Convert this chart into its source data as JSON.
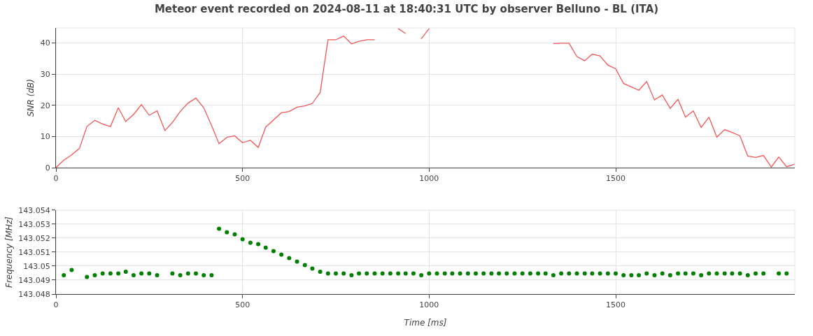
{
  "chart_data": [
    {
      "type": "line",
      "title": "Meteor event recorded on 2024-08-11 at 18:40:31 UTC by observer Belluno - BL (ITA)",
      "ylabel": "SNR (dB)",
      "marker": "none",
      "line_style": "solid",
      "grid": true,
      "x": [
        0,
        21,
        42,
        63,
        83,
        104,
        125,
        146,
        167,
        187,
        208,
        229,
        250,
        271,
        292,
        312,
        333,
        354,
        375,
        396,
        417,
        437,
        458,
        479,
        500,
        521,
        542,
        562,
        583,
        604,
        625,
        646,
        667,
        687,
        708,
        729,
        750,
        771,
        792,
        812,
        833,
        854,
        875,
        896,
        917,
        937,
        958,
        979,
        1000,
        1021,
        1042,
        1062,
        1083,
        1104,
        1125,
        1146,
        1167,
        1187,
        1208,
        1229,
        1250,
        1271,
        1292,
        1312,
        1333,
        1354,
        1375,
        1396,
        1417,
        1437,
        1458,
        1479,
        1500,
        1521,
        1542,
        1562,
        1583,
        1604,
        1625,
        1646,
        1667,
        1687,
        1708,
        1729,
        1750,
        1771,
        1792,
        1812,
        1833,
        1854,
        1875,
        1896,
        1917,
        1937,
        1958,
        1979
      ],
      "series": [
        {
          "color": "#f25757",
          "values": [
            0,
            2.4,
            4.1,
            6.2,
            13.2,
            15.2,
            14.0,
            13.2,
            19.2,
            14.8,
            17.1,
            20.2,
            16.8,
            18.2,
            11.9,
            14.5,
            18.0,
            20.7,
            22.3,
            19.2,
            13.5,
            7.7,
            9.7,
            10.2,
            8.0,
            8.8,
            6.5,
            13.0,
            15.3,
            17.6,
            18.0,
            19.4,
            19.8,
            20.6,
            24.1,
            41.0,
            41.0,
            42.2,
            39.7,
            40.5,
            41.0,
            41.0,
            null,
            null,
            44.6,
            43.0,
            null,
            41.3,
            44.6,
            null,
            null,
            null,
            null,
            null,
            null,
            null,
            null,
            null,
            null,
            null,
            null,
            null,
            null,
            null,
            39.8,
            39.9,
            39.9,
            35.6,
            34.3,
            36.4,
            35.8,
            32.9,
            31.7,
            27.0,
            25.9,
            24.8,
            27.6,
            21.7,
            23.3,
            19.0,
            21.9,
            16.2,
            18.2,
            12.9,
            16.2,
            9.8,
            12.2,
            11.3,
            10.2,
            3.7,
            3.3,
            3.9,
            0.2,
            3.4,
            0.3,
            1.1
          ]
        }
      ],
      "xlim": [
        0,
        1980
      ],
      "xticks": [
        0,
        500,
        1000,
        1500
      ],
      "ylim": [
        0,
        44.8
      ],
      "yticks": [
        0,
        10,
        20,
        30,
        40
      ]
    },
    {
      "type": "scatter",
      "xlabel": "Time [ms]",
      "ylabel": "Frequency [MHz]",
      "marker": "circle",
      "grid": true,
      "x": [
        21,
        42,
        83,
        104,
        125,
        146,
        167,
        187,
        208,
        229,
        250,
        271,
        312,
        333,
        354,
        375,
        396,
        417,
        437,
        458,
        479,
        500,
        521,
        542,
        562,
        583,
        604,
        625,
        646,
        667,
        687,
        708,
        729,
        750,
        771,
        792,
        812,
        833,
        854,
        875,
        896,
        917,
        937,
        958,
        979,
        1000,
        1021,
        1042,
        1062,
        1083,
        1104,
        1125,
        1146,
        1167,
        1187,
        1208,
        1229,
        1250,
        1271,
        1292,
        1312,
        1333,
        1354,
        1375,
        1396,
        1417,
        1437,
        1458,
        1479,
        1500,
        1521,
        1542,
        1562,
        1583,
        1604,
        1625,
        1646,
        1667,
        1687,
        1708,
        1729,
        1750,
        1771,
        1792,
        1812,
        1833,
        1854,
        1875,
        1896,
        1937,
        1958
      ],
      "series": [
        {
          "color": "#008000",
          "values": [
            143.04935,
            143.04972,
            143.04923,
            143.04935,
            143.04947,
            143.04947,
            143.04947,
            143.0496,
            143.04935,
            143.04947,
            143.04947,
            143.04935,
            143.04947,
            143.04935,
            143.04947,
            143.04947,
            143.04935,
            143.04935,
            143.05267,
            143.05242,
            143.05228,
            143.05193,
            143.05168,
            143.05157,
            143.05132,
            143.05108,
            143.05083,
            143.05058,
            143.05033,
            143.05008,
            143.04983,
            143.0496,
            143.04947,
            143.04947,
            143.04947,
            143.04935,
            143.04947,
            143.04947,
            143.04947,
            143.04947,
            143.04947,
            143.04947,
            143.04947,
            143.04947,
            143.04935,
            143.04947,
            143.04947,
            143.04947,
            143.04947,
            143.04947,
            143.04947,
            143.04947,
            143.04947,
            143.04947,
            143.04947,
            143.04947,
            143.04947,
            143.04947,
            143.04947,
            143.04947,
            143.04947,
            143.04935,
            143.04947,
            143.04947,
            143.04947,
            143.04947,
            143.04947,
            143.04947,
            143.04947,
            143.04947,
            143.04935,
            143.04935,
            143.04935,
            143.04947,
            143.04935,
            143.04947,
            143.04935,
            143.04947,
            143.04947,
            143.04947,
            143.04935,
            143.04947,
            143.04947,
            143.04947,
            143.04947,
            143.04947,
            143.04935,
            143.04947,
            143.04947,
            143.04947,
            143.04947
          ]
        }
      ],
      "xlim": [
        0,
        1980
      ],
      "xticks": [
        0,
        500,
        1000,
        1500
      ],
      "ylim": [
        143.048,
        143.054
      ],
      "yticks": [
        143.048,
        143.049,
        143.05,
        143.051,
        143.052,
        143.053,
        143.054
      ]
    }
  ]
}
